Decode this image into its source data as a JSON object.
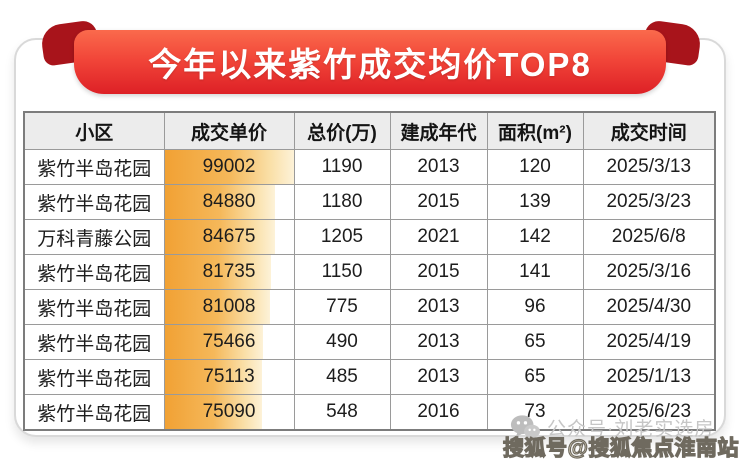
{
  "banner": {
    "title": "今年以来紫竹成交均价TOP8"
  },
  "chart_data": {
    "type": "table",
    "title": "今年以来紫竹成交均价TOP8",
    "columns": [
      "小区",
      "成交单价",
      "总价(万)",
      "建成年代",
      "面积(m²)",
      "成交时间"
    ],
    "rows": [
      {
        "community": "紫竹半岛花园",
        "unit_price": 99002,
        "total_price": 1190,
        "year_built": 2013,
        "area": 120,
        "date": "2025/3/13"
      },
      {
        "community": "紫竹半岛花园",
        "unit_price": 84880,
        "total_price": 1180,
        "year_built": 2015,
        "area": 139,
        "date": "2025/3/23"
      },
      {
        "community": "万科青藤公园",
        "unit_price": 84675,
        "total_price": 1205,
        "year_built": 2021,
        "area": 142,
        "date": "2025/6/8"
      },
      {
        "community": "紫竹半岛花园",
        "unit_price": 81735,
        "total_price": 1150,
        "year_built": 2015,
        "area": 141,
        "date": "2025/3/16"
      },
      {
        "community": "紫竹半岛花园",
        "unit_price": 81008,
        "total_price": 775,
        "year_built": 2013,
        "area": 96,
        "date": "2025/4/30"
      },
      {
        "community": "紫竹半岛花园",
        "unit_price": 75466,
        "total_price": 490,
        "year_built": 2013,
        "area": 65,
        "date": "2025/4/19"
      },
      {
        "community": "紫竹半岛花园",
        "unit_price": 75113,
        "total_price": 485,
        "year_built": 2013,
        "area": 65,
        "date": "2025/1/13"
      },
      {
        "community": "紫竹半岛花园",
        "unit_price": 75090,
        "total_price": 548,
        "year_built": 2016,
        "area": 73,
        "date": "2025/6/23"
      }
    ],
    "unit_price_bar": {
      "style": "data-bar",
      "max": 99002,
      "color": "#f1a134"
    }
  },
  "watermarks": {
    "wechat": "公众号·刘老实选房",
    "sohu": "搜狐号@搜狐焦点淮南站"
  },
  "colors": {
    "ribbon_top": "#fa6a4c",
    "ribbon_bottom": "#dd2026",
    "ribbon_fold": "#a8141b",
    "bar_orange": "#f1a134",
    "header_bg": "#ececec",
    "table_border": "#9a9a9a",
    "watermark_gray": "#c6c6c6",
    "sohu_fill": "#fbf3da",
    "sohu_outline": "#6f6a5f"
  }
}
